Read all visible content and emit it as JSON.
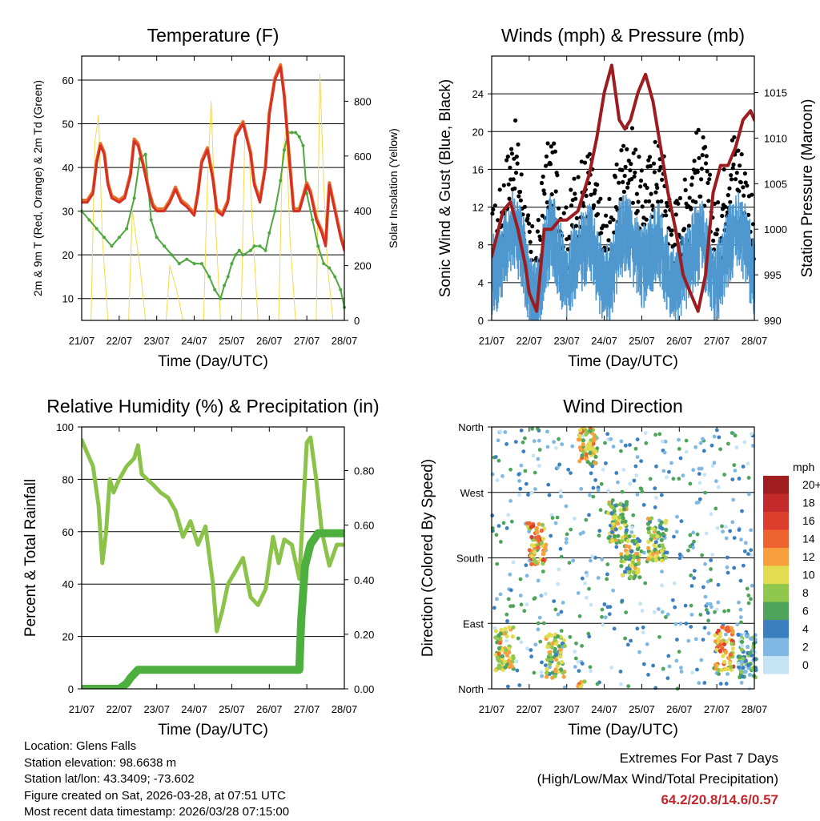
{
  "chart_data": [
    {
      "type": "line",
      "title": "Temperature (F)",
      "xlabel": "Time (Day/UTC)",
      "ylabel": "2m & 9m T (Red, Orange) & 2m Td (Green)",
      "y2label": "Solar Insolation (Yellow)",
      "xticks": [
        "21/07",
        "22/07",
        "23/07",
        "24/07",
        "25/07",
        "26/07",
        "27/07",
        "28/07"
      ],
      "xlim": [
        0,
        7
      ],
      "ylim": [
        5,
        65.5
      ],
      "yticks": [
        10,
        20,
        30,
        40,
        50,
        60
      ],
      "y2lim": [
        0,
        965
      ],
      "y2ticks": [
        0,
        200,
        400,
        600,
        800
      ],
      "series": [
        {
          "name": "2m T",
          "color": "#d62f26",
          "x": [
            0,
            0.15,
            0.3,
            0.4,
            0.5,
            0.6,
            0.7,
            0.8,
            1.0,
            1.15,
            1.3,
            1.4,
            1.5,
            1.65,
            1.8,
            1.9,
            2.0,
            2.2,
            2.35,
            2.5,
            2.65,
            2.8,
            2.9,
            3.0,
            3.1,
            3.2,
            3.35,
            3.5,
            3.6,
            3.75,
            3.9,
            4.0,
            4.1,
            4.3,
            4.5,
            4.6,
            4.75,
            4.9,
            5.0,
            5.15,
            5.3,
            5.4,
            5.55,
            5.65,
            5.8,
            5.9,
            6.0,
            6.1,
            6.25,
            6.4,
            6.5,
            6.6,
            6.75,
            6.9,
            7.0
          ],
          "y": [
            32,
            32,
            34,
            41,
            45,
            43,
            36,
            33,
            32,
            33,
            38,
            46,
            45,
            40,
            34,
            31,
            30,
            30,
            32,
            35,
            32,
            31,
            30,
            29,
            34,
            41,
            44,
            37,
            30,
            29,
            32,
            40,
            47,
            50,
            43,
            36,
            32,
            40,
            52,
            60,
            63,
            56,
            40,
            30,
            30,
            33,
            36,
            34,
            28,
            25,
            22,
            36,
            30,
            24,
            21
          ]
        },
        {
          "name": "9m T",
          "color": "#e8702a",
          "x": [
            0,
            0.15,
            0.3,
            0.4,
            0.5,
            0.6,
            0.7,
            0.8,
            1.0,
            1.15,
            1.3,
            1.4,
            1.5,
            1.65,
            1.8,
            1.9,
            2.0,
            2.2,
            2.35,
            2.5,
            2.65,
            2.8,
            2.9,
            3.0,
            3.1,
            3.2,
            3.35,
            3.5,
            3.6,
            3.75,
            3.9,
            4.0,
            4.1,
            4.3,
            4.5,
            4.6,
            4.75,
            4.9,
            5.0,
            5.15,
            5.3,
            5.4,
            5.55,
            5.65,
            5.8,
            5.9,
            6.0,
            6.1,
            6.25,
            6.4,
            6.5,
            6.6,
            6.75,
            6.9,
            7.0
          ],
          "y": [
            32.5,
            32.5,
            34.5,
            41.5,
            45.5,
            43.5,
            36.5,
            33.5,
            32.5,
            33.5,
            38.5,
            46.5,
            45.5,
            40.5,
            34.5,
            31.5,
            30.5,
            30.5,
            32.5,
            35.5,
            32.5,
            31.5,
            30.5,
            29.5,
            34.5,
            41.5,
            44.5,
            37.5,
            30.5,
            29.5,
            32.5,
            40.5,
            47.5,
            50.5,
            43.5,
            36.5,
            32.5,
            40.5,
            52.5,
            60.5,
            63.5,
            56.5,
            40.5,
            30.5,
            30.5,
            33.5,
            36.5,
            34.5,
            28.5,
            25.5,
            22.5,
            36.5,
            30.5,
            24.5,
            21.5
          ]
        },
        {
          "name": "2m Td",
          "color": "#4ea83f",
          "x": [
            0,
            0.2,
            0.4,
            0.6,
            0.8,
            1.0,
            1.2,
            1.4,
            1.55,
            1.7,
            1.85,
            2.0,
            2.2,
            2.4,
            2.6,
            2.8,
            3.0,
            3.2,
            3.4,
            3.55,
            3.7,
            3.8,
            3.9,
            4.0,
            4.1,
            4.2,
            4.3,
            4.5,
            4.6,
            4.75,
            4.9,
            5.0,
            5.15,
            5.3,
            5.4,
            5.5,
            5.6,
            5.7,
            5.8,
            5.9,
            6.0,
            6.15,
            6.3,
            6.45,
            6.6,
            6.75,
            6.9,
            7.0
          ],
          "y": [
            30,
            28,
            26,
            24,
            22,
            24,
            26,
            33,
            42,
            43,
            28,
            24,
            22,
            20,
            18,
            19,
            18,
            18,
            15,
            12,
            10,
            13,
            15,
            18,
            20,
            21,
            20,
            21,
            22,
            22,
            21,
            25,
            30,
            37,
            44,
            48,
            48,
            48,
            47,
            45,
            34,
            28,
            22,
            18,
            17,
            15,
            12,
            8
          ]
        },
        {
          "name": "Solar Insolation",
          "axis": "y2",
          "color": "#f5d94a",
          "x": [
            0,
            0.25,
            0.35,
            0.45,
            0.55,
            0.7,
            1.0,
            1.25,
            1.35,
            1.45,
            1.55,
            1.7,
            2.0,
            2.25,
            2.35,
            2.45,
            2.55,
            2.7,
            3.0,
            3.25,
            3.35,
            3.45,
            3.55,
            3.7,
            4.0,
            4.25,
            4.35,
            4.45,
            4.55,
            4.7,
            5.0,
            5.25,
            5.35,
            5.45,
            5.55,
            5.7,
            6.0,
            6.25,
            6.35,
            6.45,
            6.55,
            6.7,
            7.0
          ],
          "y": [
            0,
            0,
            650,
            750,
            300,
            0,
            0,
            0,
            400,
            300,
            200,
            0,
            0,
            0,
            200,
            150,
            100,
            0,
            0,
            0,
            500,
            800,
            400,
            0,
            0,
            0,
            700,
            650,
            350,
            0,
            0,
            0,
            600,
            700,
            300,
            0,
            0,
            0,
            900,
            500,
            200,
            0,
            0
          ]
        }
      ]
    },
    {
      "type": "scatter",
      "title": "Winds (mph) & Pressure (mb)",
      "xlabel": "Time (Day/UTC)",
      "ylabel": "Sonic Wind & Gust (Blue, Black)",
      "y2label": "Station Pressure (Maroon)",
      "xticks": [
        "21/07",
        "22/07",
        "23/07",
        "24/07",
        "25/07",
        "26/07",
        "27/07",
        "28/07"
      ],
      "xlim": [
        0,
        7
      ],
      "ylim": [
        0,
        28
      ],
      "yticks": [
        0,
        4,
        8,
        12,
        16,
        20,
        24
      ],
      "y2lim": [
        990,
        1019
      ],
      "y2ticks": [
        990,
        995,
        1000,
        1005,
        1010,
        1015
      ],
      "series": [
        {
          "name": "Sonic Wind",
          "color": "#4f98cf",
          "x": [
            0,
            0.2,
            0.4,
            0.6,
            0.8,
            1.0,
            1.2,
            1.4,
            1.6,
            1.8,
            2.0,
            2.2,
            2.4,
            2.6,
            2.8,
            3.0,
            3.2,
            3.4,
            3.6,
            3.8,
            4.0,
            4.2,
            4.4,
            4.6,
            4.8,
            5.0,
            5.2,
            5.4,
            5.6,
            5.8,
            6.0,
            6.2,
            6.4,
            6.6,
            6.8,
            7.0
          ],
          "y": [
            5,
            6,
            9,
            10,
            8,
            4,
            2,
            7,
            10,
            7,
            4,
            7,
            8,
            9,
            6,
            4,
            5,
            9,
            10,
            8,
            6,
            7,
            9,
            7,
            4,
            5,
            6,
            8,
            9,
            6,
            4,
            7,
            9,
            10,
            8,
            5
          ]
        },
        {
          "name": "Gust",
          "color": "#000000",
          "x": [
            0,
            0.2,
            0.4,
            0.6,
            0.8,
            1.0,
            1.2,
            1.4,
            1.6,
            1.8,
            2.0,
            2.2,
            2.4,
            2.6,
            2.8,
            3.0,
            3.2,
            3.4,
            3.6,
            3.8,
            4.0,
            4.2,
            4.4,
            4.6,
            4.8,
            5.0,
            5.2,
            5.4,
            5.6,
            5.8,
            6.0,
            6.2,
            6.4,
            6.6,
            6.8,
            7.0
          ],
          "y": [
            8,
            10,
            14,
            18,
            13,
            7,
            5,
            14,
            16,
            12,
            8,
            12,
            13,
            15,
            11,
            8,
            10,
            14,
            18,
            16,
            12,
            14,
            16,
            14,
            9,
            10,
            12,
            16,
            17,
            12,
            8,
            13,
            17,
            16,
            13,
            8
          ]
        },
        {
          "name": "Station Pressure",
          "axis": "y2",
          "color": "#9d1c20",
          "x": [
            0,
            0.3,
            0.5,
            0.7,
            0.9,
            1.0,
            1.2,
            1.4,
            1.6,
            1.8,
            2.0,
            2.3,
            2.6,
            2.8,
            3.0,
            3.2,
            3.4,
            3.55,
            3.7,
            3.9,
            4.1,
            4.3,
            4.5,
            4.7,
            4.9,
            5.1,
            5.3,
            5.5,
            5.7,
            5.9,
            6.1,
            6.3,
            6.5,
            6.7,
            6.9,
            7.0
          ],
          "y": [
            997,
            1002,
            1003,
            1000,
            996,
            993,
            991,
            1000,
            1000,
            1001,
            1001,
            1002,
            1006,
            1010,
            1015,
            1018,
            1012,
            1011,
            1012,
            1015,
            1017,
            1014,
            1009,
            1004,
            1000,
            995,
            993,
            991,
            995,
            1004,
            1007,
            1007,
            1009,
            1012,
            1013,
            1012
          ]
        }
      ]
    },
    {
      "type": "line",
      "title": "Relative Humidity (%) & Precipitation (in)",
      "xlabel": "Time (Day/UTC)",
      "ylabel": "Percent & Total Rainfall",
      "xticks": [
        "21/07",
        "22/07",
        "23/07",
        "24/07",
        "25/07",
        "26/07",
        "27/07",
        "28/07"
      ],
      "xlim": [
        0,
        7
      ],
      "ylim": [
        0,
        100
      ],
      "yticks": [
        0,
        20,
        40,
        60,
        80,
        100
      ],
      "y2lim": [
        0,
        0.96
      ],
      "y2ticks": [
        "0.00",
        "0.20",
        "0.40",
        "0.60",
        "0.80"
      ],
      "series": [
        {
          "name": "Relative Humidity",
          "color": "#8bc34a",
          "x": [
            0,
            0.15,
            0.3,
            0.45,
            0.55,
            0.65,
            0.75,
            0.85,
            1.0,
            1.2,
            1.4,
            1.5,
            1.6,
            1.75,
            1.9,
            2.1,
            2.3,
            2.5,
            2.7,
            2.9,
            3.1,
            3.3,
            3.5,
            3.6,
            3.75,
            3.9,
            4.1,
            4.3,
            4.5,
            4.7,
            4.9,
            5.1,
            5.25,
            5.4,
            5.6,
            5.8,
            6.0,
            6.1,
            6.25,
            6.4,
            6.6,
            6.8,
            7.0
          ],
          "y": [
            95,
            90,
            85,
            70,
            48,
            60,
            80,
            75,
            80,
            85,
            88,
            93,
            82,
            80,
            78,
            75,
            73,
            68,
            58,
            64,
            55,
            62,
            40,
            22,
            30,
            40,
            45,
            50,
            35,
            32,
            38,
            58,
            48,
            57,
            55,
            42,
            94,
            96,
            80,
            60,
            47,
            55,
            55
          ]
        },
        {
          "name": "Total Precipitation",
          "axis": "y2",
          "color": "#4caf3e",
          "x": [
            0,
            1.0,
            1.2,
            1.3,
            1.5,
            2.0,
            3.0,
            4.0,
            5.0,
            5.6,
            5.8,
            5.85,
            5.95,
            6.1,
            6.3,
            6.5,
            7.0
          ],
          "y": [
            0,
            0,
            0.02,
            0.04,
            0.07,
            0.07,
            0.07,
            0.07,
            0.07,
            0.07,
            0.07,
            0.25,
            0.45,
            0.53,
            0.57,
            0.57,
            0.57
          ]
        }
      ]
    },
    {
      "type": "scatter",
      "title": "Wind Direction",
      "xlabel": "Time (Day/UTC)",
      "ylabel": "Direction (Colored By Speed)",
      "xticks": [
        "21/07",
        "22/07",
        "23/07",
        "24/07",
        "25/07",
        "26/07",
        "27/07",
        "28/07"
      ],
      "xlim": [
        0,
        7
      ],
      "ylim": [
        0,
        360
      ],
      "yticks": [
        "North",
        "East",
        "South",
        "West",
        "North"
      ],
      "colorbar": {
        "title": "mph",
        "labels": [
          "20+",
          "18",
          "16",
          "14",
          "12",
          "10",
          "8",
          "6",
          "4",
          "2",
          "0"
        ],
        "colors": [
          "#a01d20",
          "#c42a2a",
          "#dd3d2d",
          "#ef6231",
          "#f89f3e",
          "#e4dc50",
          "#8fc84c",
          "#4ea45a",
          "#3b7fc0",
          "#7fb8e3",
          "#c4e3f5"
        ]
      },
      "clusters": [
        {
          "x": 0.35,
          "dir": 55,
          "speed": 10
        },
        {
          "x": 1.2,
          "dir": 200,
          "speed": 12
        },
        {
          "x": 1.7,
          "dir": 45,
          "speed": 8
        },
        {
          "x": 2.55,
          "dir": 340,
          "speed": 10
        },
        {
          "x": 3.35,
          "dir": 230,
          "speed": 8
        },
        {
          "x": 3.7,
          "dir": 180,
          "speed": 8
        },
        {
          "x": 4.4,
          "dir": 205,
          "speed": 8
        },
        {
          "x": 6.2,
          "dir": 55,
          "speed": 12
        },
        {
          "x": 6.8,
          "dir": 45,
          "speed": 4
        }
      ]
    }
  ],
  "info": {
    "location": "Location: Glens Falls",
    "elevation": "Station elevation: 98.6638 m",
    "latlon": "Station lat/lon: 43.3409; -73.602",
    "created": "Figure created on Sat, 2026-03-28, at 07:51 UTC",
    "recent": "Most recent data timestamp: 2026/03/28 07:15:00"
  },
  "extremes": {
    "title": "Extremes For Past 7 Days",
    "subtitle": "(High/Low/Max Wind/Total Precipitation)",
    "values": "64.2/20.8/14.6/0.57"
  }
}
